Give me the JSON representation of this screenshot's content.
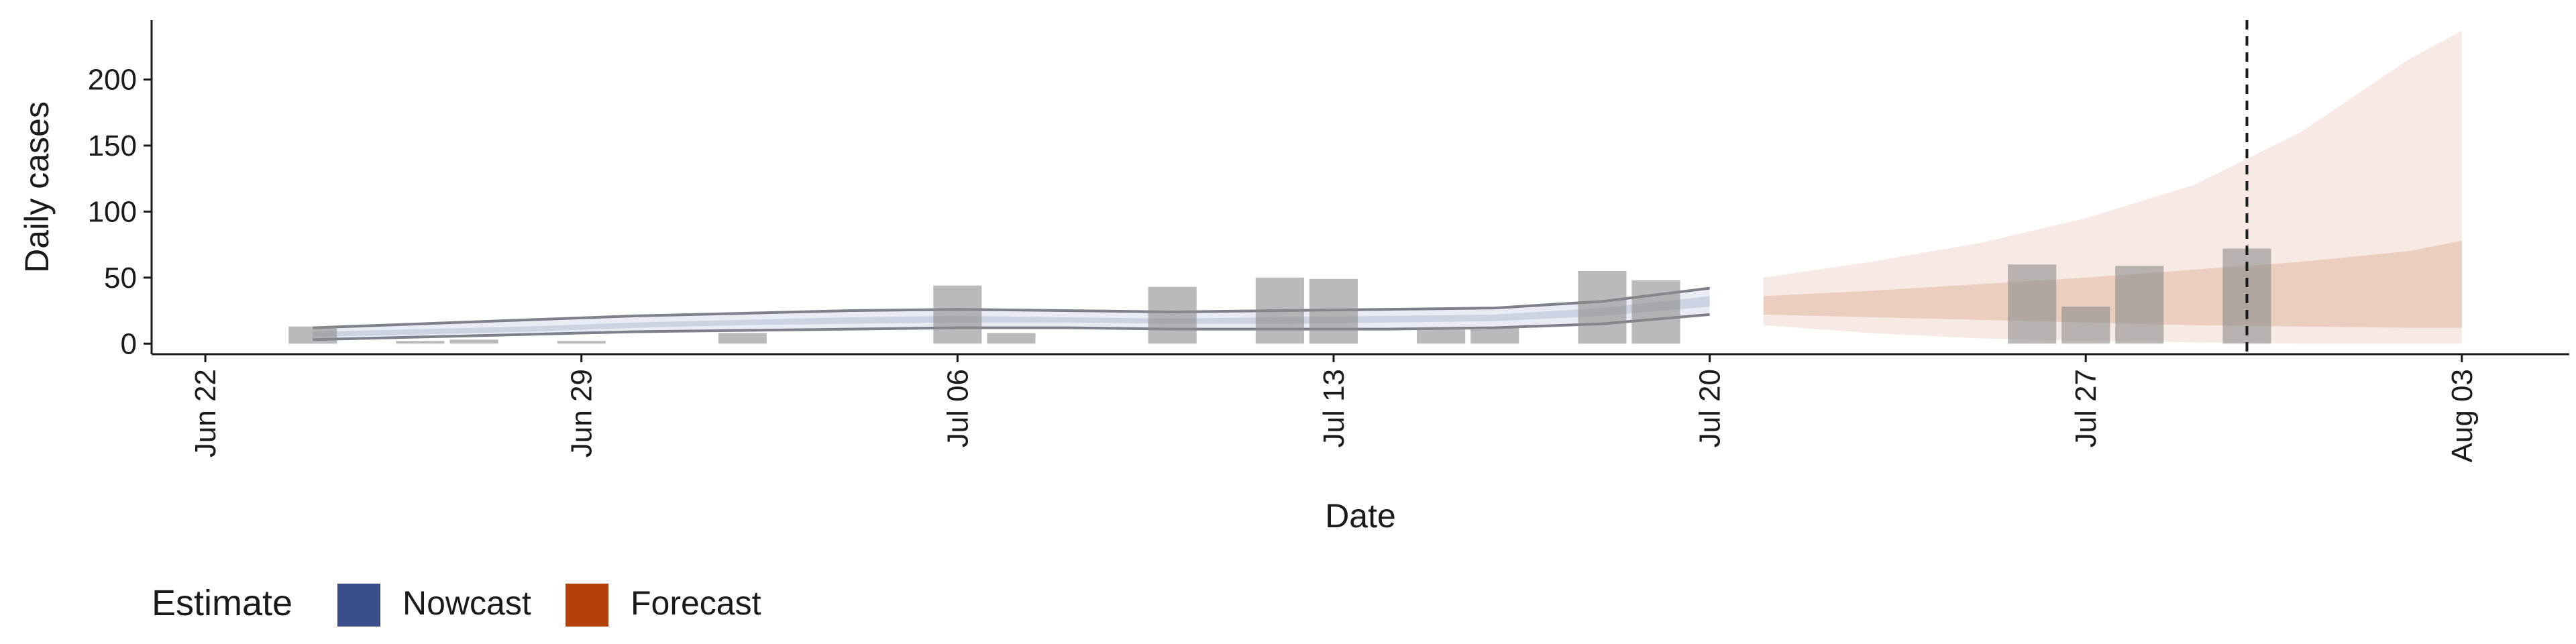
{
  "chart_data": {
    "type": "bar",
    "xlabel": "Date",
    "ylabel": "Daily cases",
    "xlim": [
      "2020-06-21",
      "2020-08-05"
    ],
    "ylim": [
      -8,
      245
    ],
    "yticks": [
      0,
      50,
      100,
      150,
      200
    ],
    "xticks": [
      {
        "date": "2020-06-22",
        "label": "Jun 22"
      },
      {
        "date": "2020-06-29",
        "label": "Jun 29"
      },
      {
        "date": "2020-07-06",
        "label": "Jul 06"
      },
      {
        "date": "2020-07-13",
        "label": "Jul 13"
      },
      {
        "date": "2020-07-20",
        "label": "Jul 20"
      },
      {
        "date": "2020-07-27",
        "label": "Jul 27"
      },
      {
        "date": "2020-08-03",
        "label": "Aug 03"
      }
    ],
    "reference_line_date": "2020-07-30",
    "reported_cases": [
      {
        "date": "2020-06-24",
        "value": 13
      },
      {
        "date": "2020-06-26",
        "value": 2
      },
      {
        "date": "2020-06-27",
        "value": 3
      },
      {
        "date": "2020-06-29",
        "value": 2
      },
      {
        "date": "2020-07-02",
        "value": 8
      },
      {
        "date": "2020-07-06",
        "value": 44
      },
      {
        "date": "2020-07-07",
        "value": 8
      },
      {
        "date": "2020-07-10",
        "value": 43
      },
      {
        "date": "2020-07-12",
        "value": 50
      },
      {
        "date": "2020-07-13",
        "value": 49
      },
      {
        "date": "2020-07-15",
        "value": 12
      },
      {
        "date": "2020-07-16",
        "value": 12
      },
      {
        "date": "2020-07-18",
        "value": 55
      },
      {
        "date": "2020-07-19",
        "value": 48
      },
      {
        "date": "2020-07-26",
        "value": 60
      },
      {
        "date": "2020-07-27",
        "value": 28
      },
      {
        "date": "2020-07-28",
        "value": 59
      },
      {
        "date": "2020-07-30",
        "value": 72
      }
    ],
    "series": [
      {
        "name": "Nowcast",
        "color": "#3A4E8C",
        "x": [
          "2020-06-24",
          "2020-06-26",
          "2020-06-28",
          "2020-06-30",
          "2020-07-02",
          "2020-07-04",
          "2020-07-06",
          "2020-07-08",
          "2020-07-10",
          "2020-07-12",
          "2020-07-14",
          "2020-07-16",
          "2020-07-18",
          "2020-07-20"
        ],
        "outer_low": [
          3,
          5,
          7,
          9,
          10,
          11,
          12,
          12,
          11,
          11,
          11,
          12,
          15,
          22
        ],
        "outer_high": [
          12,
          15,
          18,
          21,
          23,
          25,
          26,
          25,
          24,
          25,
          26,
          27,
          32,
          42
        ],
        "inner_low": [
          5,
          7,
          9,
          12,
          14,
          15,
          16,
          16,
          15,
          15,
          16,
          17,
          21,
          28
        ],
        "inner_high": [
          9,
          11,
          13,
          16,
          18,
          20,
          21,
          20,
          19,
          20,
          21,
          22,
          27,
          36
        ]
      },
      {
        "name": "Forecast",
        "color": "#B5400A",
        "x": [
          "2020-07-21",
          "2020-07-23",
          "2020-07-25",
          "2020-07-27",
          "2020-07-29",
          "2020-07-31",
          "2020-08-02",
          "2020-08-03"
        ],
        "outer_low": [
          14,
          8,
          4,
          2,
          1,
          0,
          0,
          0
        ],
        "outer_high": [
          50,
          62,
          76,
          95,
          120,
          160,
          215,
          237
        ],
        "inner_low": [
          22,
          20,
          18,
          16,
          14,
          13,
          12,
          12
        ],
        "inner_high": [
          36,
          40,
          45,
          50,
          56,
          62,
          70,
          78
        ]
      }
    ],
    "legend": {
      "title": "Estimate",
      "position": "bottom-left",
      "items": [
        {
          "label": "Nowcast",
          "color": "#3A4E8C"
        },
        {
          "label": "Forecast",
          "color": "#B5400A"
        }
      ]
    }
  }
}
